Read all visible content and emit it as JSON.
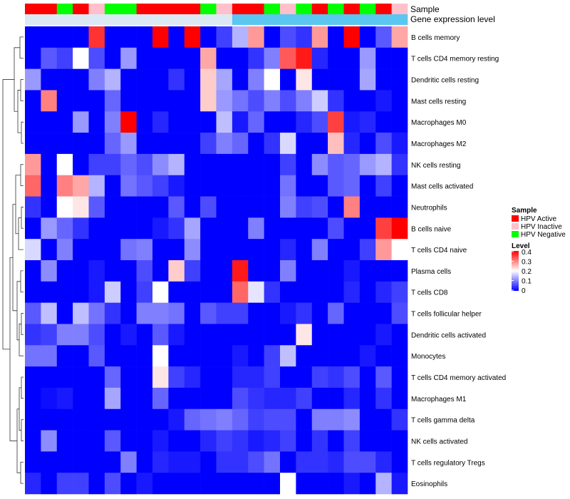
{
  "chart_data": {
    "type": "heatmap",
    "title": "",
    "annotation_tracks": [
      {
        "name": "Sample",
        "values": [
          "HPV Active",
          "HPV Active",
          "HPV Negative",
          "HPV Active",
          "HPV Inactive",
          "HPV Negative",
          "HPV Negative",
          "HPV Active",
          "HPV Active",
          "HPV Active",
          "HPV Active",
          "HPV Negative",
          "HPV Inactive",
          "HPV Active",
          "HPV Active",
          "HPV Negative",
          "HPV Inactive",
          "HPV Negative",
          "HPV Active",
          "HPV Negative",
          "HPV Active",
          "HPV Negative",
          "HPV Active",
          "HPV Inactive"
        ]
      },
      {
        "name": "Gene expression level",
        "values": [
          "low",
          "low",
          "low",
          "low",
          "low",
          "low",
          "low",
          "low",
          "low",
          "low",
          "low",
          "low",
          "low",
          "high",
          "high",
          "high",
          "high",
          "high",
          "high",
          "high",
          "high",
          "high",
          "high",
          "high"
        ]
      }
    ],
    "rows": [
      "B cells memory",
      "T cells CD4 memory resting",
      "Dendritic cells resting",
      "Mast cells resting",
      "Macrophages M0",
      "Macrophages M2",
      "NK cells resting",
      "Mast cells activated",
      "Neutrophils",
      "B cells naive",
      "T cells CD4 naive",
      "Plasma cells",
      "T cells CD8",
      "T cells follicular helper",
      "Dendritic cells activated",
      "Monocytes",
      "T cells CD4 memory activated",
      "Macrophages M1",
      "T cells gamma delta",
      "NK cells activated",
      "T cells regulatory  Tregs",
      "Eosinophils"
    ],
    "num_columns": 24,
    "values": [
      [
        0,
        0,
        0,
        0,
        0.36,
        0,
        0,
        0,
        0.4,
        0,
        0.4,
        0,
        0.05,
        0.14,
        0.28,
        0,
        0.06,
        0.04,
        0.28,
        0,
        0.4,
        0,
        0.07,
        0.27
      ],
      [
        0,
        0.07,
        0.05,
        0.2,
        0.06,
        0,
        0.12,
        0,
        0,
        0,
        0,
        0.27,
        0,
        0,
        0.04,
        0.1,
        0.33,
        0.38,
        0.03,
        0,
        0,
        0.12,
        0,
        0
      ],
      [
        0.12,
        0,
        0,
        0,
        0.1,
        0.14,
        0,
        0,
        0,
        0.04,
        0,
        0.24,
        0.13,
        0,
        0.1,
        0.2,
        0,
        0.22,
        0,
        0,
        0,
        0.13,
        0,
        0
      ],
      [
        0,
        0.3,
        0,
        0,
        0,
        0.08,
        0,
        0,
        0,
        0,
        0,
        0.24,
        0.12,
        0.09,
        0.06,
        0.1,
        0.06,
        0.1,
        0.16,
        0.04,
        0,
        0,
        0.02,
        0
      ],
      [
        0,
        0,
        0,
        0.12,
        0,
        0.1,
        0.4,
        0,
        0.03,
        0,
        0,
        0,
        0.15,
        0.02,
        0.08,
        0,
        0,
        0.03,
        0.06,
        0.35,
        0.02,
        0.03,
        0,
        0
      ],
      [
        0,
        0,
        0,
        0,
        0,
        0.08,
        0.12,
        0,
        0,
        0,
        0,
        0.05,
        0.1,
        0.08,
        0,
        0.04,
        0.17,
        0,
        0,
        0.25,
        0.03,
        0,
        0.06,
        0.02
      ],
      [
        0.28,
        0,
        0.2,
        0,
        0.05,
        0.05,
        0.08,
        0.06,
        0.11,
        0.14,
        0,
        0,
        0,
        0,
        0,
        0,
        0.05,
        0,
        0.11,
        0.07,
        0.08,
        0.12,
        0.14,
        0.04
      ],
      [
        0.32,
        0,
        0.3,
        0.27,
        0.14,
        0,
        0.09,
        0.07,
        0.05,
        0.02,
        0,
        0,
        0,
        0,
        0,
        0,
        0.09,
        0,
        0,
        0.07,
        0.08,
        0,
        0.05,
        0
      ],
      [
        0.04,
        0,
        0.2,
        0.22,
        0.07,
        0,
        0,
        0,
        0,
        0.07,
        0,
        0.06,
        0,
        0,
        0,
        0,
        0.1,
        0.05,
        0.06,
        0,
        0.3,
        0,
        0,
        0
      ],
      [
        0,
        0.12,
        0.08,
        0.04,
        0,
        0,
        0,
        0,
        0.02,
        0.04,
        0.13,
        0,
        0,
        0,
        0.1,
        0,
        0,
        0,
        0,
        0.06,
        0,
        0,
        0.35,
        0.4
      ],
      [
        0.17,
        0,
        0.1,
        0,
        0,
        0,
        0.09,
        0.1,
        0,
        0,
        0.11,
        0,
        0,
        0,
        0,
        0,
        0.03,
        0,
        0.1,
        0,
        0,
        0.05,
        0.28,
        0.2
      ],
      [
        0,
        0.11,
        0,
        0,
        0.02,
        0,
        0,
        0.06,
        0,
        0.24,
        0.05,
        0,
        0,
        0.38,
        0,
        0,
        0.1,
        0,
        0,
        0,
        0.02,
        0,
        0,
        0
      ],
      [
        0,
        0,
        0,
        0,
        0.02,
        0.16,
        0,
        0.05,
        0.2,
        0,
        0,
        0,
        0,
        0.32,
        0.18,
        0.04,
        0,
        0,
        0,
        0,
        0.03,
        0,
        0.03,
        0.05
      ],
      [
        0.07,
        0.15,
        0,
        0.15,
        0.09,
        0.04,
        0,
        0.1,
        0.1,
        0.09,
        0,
        0.07,
        0.05,
        0.05,
        0,
        0,
        0.02,
        0.04,
        0,
        0.08,
        0,
        0,
        0,
        0.06
      ],
      [
        0.04,
        0.05,
        0.1,
        0.1,
        0.06,
        0,
        0.02,
        0,
        0.07,
        0.02,
        0,
        0,
        0,
        0,
        0,
        0,
        0,
        0.22,
        0,
        0,
        0,
        0,
        0.02,
        0
      ],
      [
        0.09,
        0.09,
        0,
        0,
        0.07,
        0,
        0,
        0,
        0.2,
        0,
        0,
        0,
        0,
        0.02,
        0,
        0.05,
        0.15,
        0,
        0,
        0,
        0,
        0.02,
        0,
        0
      ],
      [
        0,
        0,
        0,
        0,
        0,
        0.08,
        0,
        0,
        0.22,
        0.05,
        0.03,
        0,
        0,
        0.03,
        0.03,
        0.05,
        0,
        0,
        0.05,
        0.04,
        0.06,
        0,
        0.07,
        0
      ],
      [
        0,
        0.01,
        0.02,
        0,
        0,
        0.13,
        0,
        0,
        0.08,
        0,
        0,
        0,
        0,
        0.06,
        0.04,
        0.03,
        0.03,
        0.05,
        0,
        0,
        0.03,
        0,
        0.04,
        0
      ],
      [
        0,
        0,
        0,
        0,
        0,
        0,
        0,
        0,
        0,
        0.02,
        0.08,
        0.09,
        0.1,
        0.08,
        0.05,
        0.06,
        0.06,
        0,
        0.1,
        0.1,
        0.11,
        0,
        0,
        0.04
      ],
      [
        0,
        0.11,
        0,
        0,
        0,
        0.07,
        0,
        0,
        0.02,
        0,
        0,
        0.03,
        0.05,
        0.04,
        0.02,
        0.03,
        0.05,
        0,
        0.04,
        0,
        0.05,
        0,
        0,
        0
      ],
      [
        0,
        0,
        0,
        0,
        0,
        0,
        0.1,
        0,
        0.03,
        0.02,
        0.02,
        0,
        0.04,
        0.04,
        0.06,
        0.09,
        0,
        0.04,
        0.04,
        0.03,
        0.06,
        0.06,
        0.03,
        0
      ],
      [
        0.03,
        0,
        0.05,
        0.05,
        0,
        0.06,
        0,
        0.02,
        0,
        0,
        0,
        0,
        0,
        0,
        0,
        0,
        0.2,
        0,
        0,
        0,
        0.02,
        0,
        0.14,
        0.02
      ]
    ],
    "legends": [
      {
        "title": "Sample",
        "entries": [
          {
            "label": "HPV Active",
            "color": "#ff0000"
          },
          {
            "label": "HPV Inactive",
            "color": "#ffc0cb"
          },
          {
            "label": "HPV Negative",
            "color": "#00ff00"
          }
        ]
      },
      {
        "title": "Level",
        "colorscale": [
          "#0000ff",
          "#ffffff",
          "#ff0000"
        ],
        "range": [
          0,
          0.4
        ],
        "ticks": [
          "0.4",
          "0.3",
          "0.2",
          "0.1",
          "0"
        ]
      }
    ],
    "gene_track_colors": {
      "low": "#dbe9f5",
      "high": "#5bc6f0"
    },
    "dendrogram": "rows"
  },
  "colors": {
    "background": "#ffffff",
    "text": "#000000",
    "dendrogram": "#333333"
  }
}
